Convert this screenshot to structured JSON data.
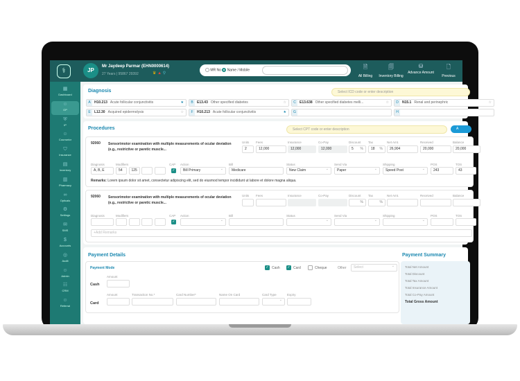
{
  "header": {
    "patient_initials": "JP",
    "patient_name": "Mr Jaydeep Parmar (EHN0000614)",
    "patient_sub": "27 Years | 95867 29392",
    "search_options": [
      "MR No",
      "Name / Mobile"
    ],
    "selected_option": "Name / Mobile",
    "search_value": "",
    "buttons": [
      "All Billing",
      "Inventory Billing",
      "Advance Amount",
      "Previous"
    ]
  },
  "sidebar": {
    "items": [
      "Dashboard",
      "OP",
      "IP",
      "Counselor",
      "Insurance",
      "Inventory",
      "Pharmacy",
      "Opticals",
      "Settings",
      "SMS",
      "Accounts",
      "Audit",
      "Admin",
      "CRM",
      "Referral"
    ],
    "active": "OP"
  },
  "diagnosis": {
    "title": "Diagnosis",
    "placeholder": "Select ICD code or enter description",
    "items": [
      {
        "letter": "A",
        "code": "H10.213",
        "desc": "Acute follicular conjunctivitis",
        "starred": true
      },
      {
        "letter": "B",
        "code": "E13.43",
        "desc": "Other specified diabetes",
        "starred": false
      },
      {
        "letter": "C",
        "code": "E13.638",
        "desc": "Other specified diabetes melli...",
        "starred": false
      },
      {
        "letter": "D",
        "code": "N15.1",
        "desc": "Renal and perinephric",
        "starred": false
      },
      {
        "letter": "E",
        "code": "L12.30",
        "desc": "Acquired epidermolysis",
        "starred": false
      },
      {
        "letter": "F",
        "code": "H10.213",
        "desc": "Acute follicular conjunctivitis",
        "starred": true
      },
      {
        "letter": "G",
        "code": "",
        "desc": "",
        "starred": false
      },
      {
        "letter": "H",
        "code": "",
        "desc": "",
        "starred": false
      }
    ]
  },
  "procedures": {
    "title": "Procedures",
    "placeholder": "Select CPT code or enter description",
    "add_label": "A",
    "labels": {
      "units": "Units",
      "fees": "Fees",
      "insurance": "Insurance",
      "copay": "Co-Pay",
      "discount": "Discount",
      "tax": "Tax",
      "net": "Net Amt.",
      "received": "Received",
      "balance": "Balance",
      "diagnosis": "Diagnosis",
      "modifiers": "Modifiers",
      "cap": "CAP",
      "action": "Action",
      "bill": "Bill",
      "status": "Status",
      "sendvia": "Send Via",
      "shipping": "Shipping",
      "pos": "POS",
      "tos": "TOS",
      "pct": "%",
      "remarks": "Remarks:",
      "add_remarks": "+Add Remarks"
    },
    "items": [
      {
        "code": "92060",
        "desc": "Sensorimotor examination with multiple measurements of ocular deviation (e.g., restrictive or paretic muscle...",
        "units": "2",
        "fees": "12,000",
        "insurance": "12,000",
        "copay": "12,000",
        "discount": "5",
        "tax": "18",
        "net": "26,904",
        "received": "20,000",
        "balance": "20,000",
        "diagnosis": "A, B, E",
        "modifiers": [
          "54",
          "125",
          "",
          ""
        ],
        "cap": true,
        "action": "Bill Primary",
        "bill": "Medicare",
        "status": "New Claim",
        "sendvia": "Paper",
        "shipping": "Speed Post",
        "pos": "243",
        "tos": "43",
        "remarks": "Lorem ipsum dolor sit amet, consectetur adipiscing elit, sed do eiusmod tempor incididunt ut labore et dolore magna aliqua."
      },
      {
        "code": "92060",
        "desc": "Sensorimotor examination with multiple measurements of ocular deviation (e.g., restrictive or paretic muscle...",
        "units": "",
        "fees": "",
        "insurance": "",
        "copay": "",
        "discount": "",
        "tax": "",
        "net": "",
        "received": "",
        "balance": "",
        "diagnosis": "",
        "modifiers": [
          "",
          "",
          "",
          ""
        ],
        "cap": true,
        "action": "",
        "bill": "",
        "status": "",
        "sendvia": "",
        "shipping": "",
        "pos": "",
        "tos": ""
      }
    ]
  },
  "payment": {
    "title": "Payment Details",
    "mode_title": "Payment Mode",
    "modes": [
      {
        "label": "Cash",
        "checked": true
      },
      {
        "label": "Card",
        "checked": true
      },
      {
        "label": "Cheque",
        "checked": false
      }
    ],
    "other_label": "Other",
    "other_placeholder": "Select",
    "cash_label": "Cash",
    "card_label": "Card",
    "amount_label": "Amount",
    "card_fields": [
      "Amount",
      "Transaction No.*",
      "Card Number*",
      "Name On Card",
      "Card Type",
      "Expiry"
    ]
  },
  "summary": {
    "title": "Payment Summary",
    "rows": [
      "Total Net Amount",
      "Total Discount",
      "Total Tax Amount",
      "Total Insurance Amount",
      "Total Co-Pay Amount"
    ],
    "gross": "Total Gross Amount"
  },
  "colors": {
    "header": "#1d5c5c",
    "sidebar": "#1e7a73",
    "accent": "#1b88b0",
    "check": "#1b8f87"
  }
}
